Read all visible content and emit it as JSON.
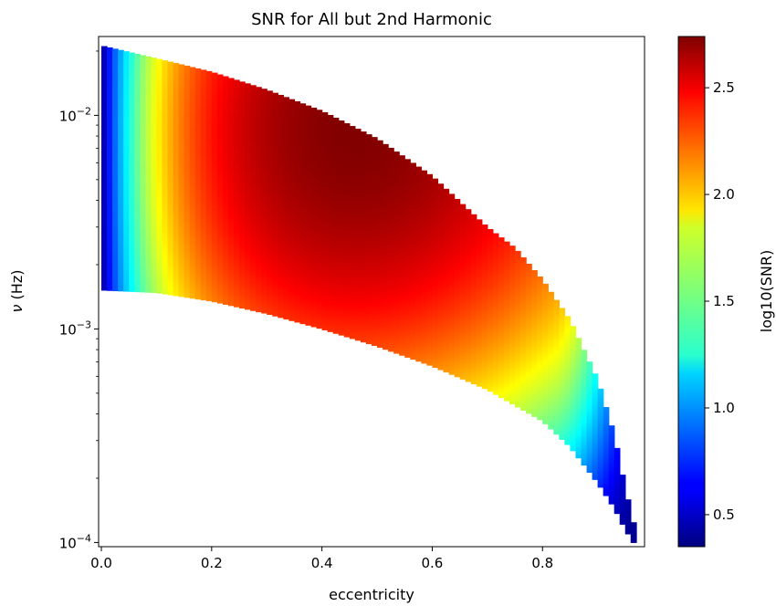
{
  "chart_data": {
    "type": "heatmap",
    "title": "SNR for All but 2nd Harmonic",
    "xlabel": "eccentricity",
    "ylabel_symbol": "ν",
    "ylabel_unit": " (Hz)",
    "xlim": [
      -0.005,
      0.985
    ],
    "ylim": [
      9.56e-05,
      0.0234
    ],
    "yscale": "log",
    "xticks": [
      {
        "value": 0.0,
        "label": "0.0"
      },
      {
        "value": 0.2,
        "label": "0.2"
      },
      {
        "value": 0.4,
        "label": "0.4"
      },
      {
        "value": 0.6,
        "label": "0.6"
      },
      {
        "value": 0.8,
        "label": "0.8"
      }
    ],
    "yticks": [
      {
        "value": 0.0001,
        "base": "10",
        "exp": "−4"
      },
      {
        "value": 0.001,
        "base": "10",
        "exp": "−3"
      },
      {
        "value": 0.01,
        "base": "10",
        "exp": "−2"
      }
    ],
    "colorbar": {
      "label": "log10(SNR)",
      "colormap": "jet",
      "range": [
        0.35,
        2.74
      ],
      "ticks": [
        {
          "value": 0.5,
          "label": "0.5"
        },
        {
          "value": 1.0,
          "label": "1.0"
        },
        {
          "value": 1.5,
          "label": "1.5"
        },
        {
          "value": 2.0,
          "label": "2.0"
        },
        {
          "value": 2.5,
          "label": "2.5"
        }
      ]
    },
    "grid": {
      "e_start": 0.005,
      "e_step": 0.01,
      "e_count": 97,
      "upper_boundary": [
        {
          "e": 0.005,
          "nu": 0.0211
        },
        {
          "e": 0.1,
          "nu": 0.0185
        },
        {
          "e": 0.2,
          "nu": 0.016
        },
        {
          "e": 0.3,
          "nu": 0.0132
        },
        {
          "e": 0.4,
          "nu": 0.0105
        },
        {
          "e": 0.5,
          "nu": 0.0078
        },
        {
          "e": 0.6,
          "nu": 0.0052
        },
        {
          "e": 0.7,
          "nu": 0.003
        },
        {
          "e": 0.75,
          "nu": 0.0024
        },
        {
          "e": 0.8,
          "nu": 0.0017
        },
        {
          "e": 0.85,
          "nu": 0.0011
        },
        {
          "e": 0.9,
          "nu": 0.00058
        },
        {
          "e": 0.93,
          "nu": 0.00032
        },
        {
          "e": 0.95,
          "nu": 0.00018
        },
        {
          "e": 0.97,
          "nu": 0.00011
        }
      ],
      "lower_boundary": [
        {
          "e": 0.005,
          "nu": 0.00152
        },
        {
          "e": 0.1,
          "nu": 0.00148
        },
        {
          "e": 0.2,
          "nu": 0.00135
        },
        {
          "e": 0.3,
          "nu": 0.00118
        },
        {
          "e": 0.4,
          "nu": 0.001
        },
        {
          "e": 0.5,
          "nu": 0.00083
        },
        {
          "e": 0.6,
          "nu": 0.00067
        },
        {
          "e": 0.7,
          "nu": 0.00052
        },
        {
          "e": 0.8,
          "nu": 0.00037
        },
        {
          "e": 0.85,
          "nu": 0.00028
        },
        {
          "e": 0.9,
          "nu": 0.00019
        },
        {
          "e": 0.93,
          "nu": 0.000145
        },
        {
          "e": 0.95,
          "nu": 0.000115
        },
        {
          "e": 0.97,
          "nu": 9.56e-05
        }
      ],
      "log10_snr_model": {
        "low_e_edge": {
          "e0": 0.005,
          "value": 0.5,
          "rise_scale": 0.075
        },
        "body_peak": {
          "e": 0.45,
          "nu": 0.0085,
          "value": 2.74
        },
        "high_e_falloff": {
          "e_start": 0.82,
          "e_end": 0.97,
          "value_at_end": 0.4
        }
      }
    }
  }
}
